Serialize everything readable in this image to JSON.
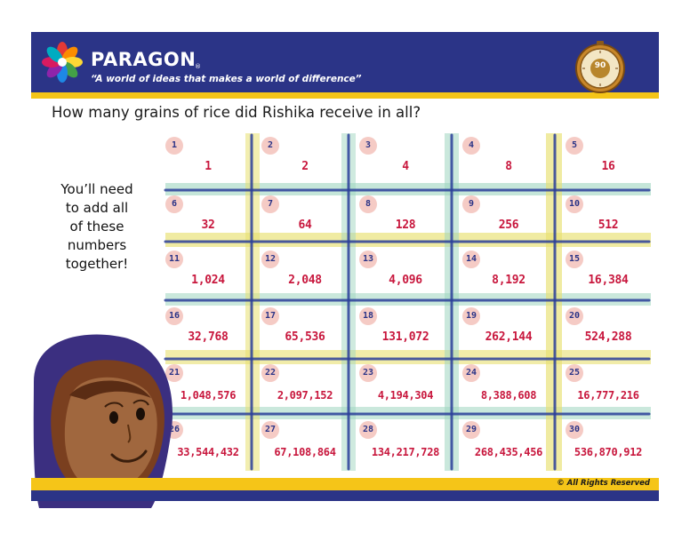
{
  "header": {
    "brand": "PARAGON",
    "registered": "®",
    "tagline": "“A world of ideas that makes a world of difference”",
    "timer_value": "90"
  },
  "question": "How many grains of rice did Rishika receive in all?",
  "hint_lines": [
    "You’ll need",
    "to add all",
    "of these",
    "numbers",
    "together!"
  ],
  "grid": {
    "cells": [
      {
        "n": "1",
        "v": "1"
      },
      {
        "n": "2",
        "v": "2"
      },
      {
        "n": "3",
        "v": "4"
      },
      {
        "n": "4",
        "v": "8"
      },
      {
        "n": "5",
        "v": "16"
      },
      {
        "n": "6",
        "v": "32"
      },
      {
        "n": "7",
        "v": "64"
      },
      {
        "n": "8",
        "v": "128"
      },
      {
        "n": "9",
        "v": "256"
      },
      {
        "n": "10",
        "v": "512"
      },
      {
        "n": "11",
        "v": "1,024"
      },
      {
        "n": "12",
        "v": "2,048"
      },
      {
        "n": "13",
        "v": "4,096"
      },
      {
        "n": "14",
        "v": "8,192"
      },
      {
        "n": "15",
        "v": "16,384"
      },
      {
        "n": "16",
        "v": "32,768"
      },
      {
        "n": "17",
        "v": "65,536"
      },
      {
        "n": "18",
        "v": "131,072"
      },
      {
        "n": "19",
        "v": "262,144"
      },
      {
        "n": "20",
        "v": "524,288"
      },
      {
        "n": "21",
        "v": "1,048,576"
      },
      {
        "n": "22",
        "v": "2,097,152"
      },
      {
        "n": "23",
        "v": "4,194,304"
      },
      {
        "n": "24",
        "v": "8,388,608"
      },
      {
        "n": "25",
        "v": "16,777,216"
      },
      {
        "n": "26",
        "v": "33,544,432"
      },
      {
        "n": "27",
        "v": "67,108,864"
      },
      {
        "n": "28",
        "v": "134,217,728"
      },
      {
        "n": "29",
        "v": "268,435,456"
      },
      {
        "n": "30",
        "v": "536,870,912"
      }
    ]
  },
  "footer": {
    "copyright": "© All Rights Reserved"
  },
  "colors": {
    "header_blue": "#2b3487",
    "accent_yellow": "#f5c518",
    "value_red": "#c8173d",
    "grid_blue": "#2b3f9a",
    "grid_green": "#7ec8a8",
    "grid_yellow": "#e8e070"
  }
}
